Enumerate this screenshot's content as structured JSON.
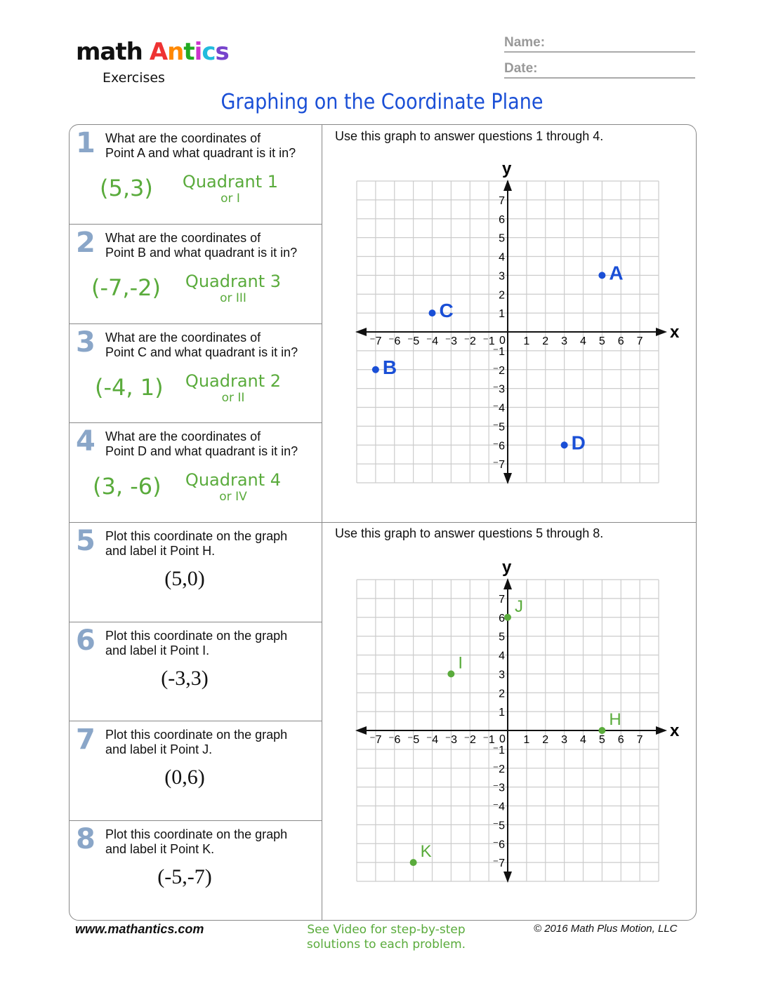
{
  "header": {
    "logo_math": "math",
    "logo_antics": "Antics",
    "logo_exercises": "Exercises",
    "name_label": "Name:",
    "date_label": "Date:",
    "title": "Graphing on the Coordinate Plane"
  },
  "questions": [
    {
      "num": "1",
      "text": [
        "What are the coordinates of",
        "Point A and what quadrant is it in?"
      ],
      "answer": "(5,3)",
      "quadrant": "Quadrant 1",
      "roman": "or I"
    },
    {
      "num": "2",
      "text": [
        "What are the coordinates of",
        "Point B and what quadrant is it in?"
      ],
      "answer": "(-7,-2)",
      "quadrant": "Quadrant 3",
      "roman": "or III"
    },
    {
      "num": "3",
      "text": [
        "What are the coordinates of",
        "Point C and what quadrant is it in?"
      ],
      "answer": "(-4, 1)",
      "quadrant": "Quadrant 2",
      "roman": "or II"
    },
    {
      "num": "4",
      "text": [
        "What are the coordinates of",
        "Point D and what quadrant is it in?"
      ],
      "answer": "(3, -6)",
      "quadrant": "Quadrant 4",
      "roman": "or IV"
    },
    {
      "num": "5",
      "text": [
        "Plot this coordinate on the graph",
        "and label it Point H."
      ],
      "coord": "(5,0)"
    },
    {
      "num": "6",
      "text": [
        "Plot this coordinate on the graph",
        "and label it Point I."
      ],
      "coord": "(-3,3)"
    },
    {
      "num": "7",
      "text": [
        "Plot this coordinate on the graph",
        "and label it Point J."
      ],
      "coord": "(0,6)"
    },
    {
      "num": "8",
      "text": [
        "Plot this coordinate on the graph",
        "and label it Point K."
      ],
      "coord": "(-5,-7)"
    }
  ],
  "graph_captions": [
    "Use this graph to answer questions 1 through 4.",
    "Use this graph to answer questions 5 through 8."
  ],
  "chart_data": [
    {
      "type": "scatter",
      "xlabel": "x",
      "ylabel": "y",
      "xlim": [
        -8,
        8
      ],
      "ylim": [
        -8,
        8
      ],
      "ticks": [
        -7,
        -6,
        -5,
        -4,
        -3,
        -2,
        -1,
        0,
        1,
        2,
        3,
        4,
        5,
        6,
        7
      ],
      "grid": true,
      "color": "#1a4fd6",
      "points": [
        {
          "label": "A",
          "x": 5,
          "y": 3
        },
        {
          "label": "B",
          "x": -7,
          "y": -2
        },
        {
          "label": "C",
          "x": -4,
          "y": 1
        },
        {
          "label": "D",
          "x": 3,
          "y": -6
        }
      ]
    },
    {
      "type": "scatter",
      "xlabel": "x",
      "ylabel": "y",
      "xlim": [
        -8,
        8
      ],
      "ylim": [
        -8,
        8
      ],
      "ticks": [
        -7,
        -6,
        -5,
        -4,
        -3,
        -2,
        -1,
        0,
        1,
        2,
        3,
        4,
        5,
        6,
        7
      ],
      "grid": true,
      "color": "#5aab3c",
      "points": [
        {
          "label": "H",
          "x": 5,
          "y": 0
        },
        {
          "label": "I",
          "x": -3,
          "y": 3
        },
        {
          "label": "J",
          "x": 0,
          "y": 6
        },
        {
          "label": "K",
          "x": -5,
          "y": -7
        }
      ]
    }
  ],
  "footer": {
    "website": "www.mathantics.com",
    "video_note": [
      "See Video for step-by-step",
      "solutions to each problem."
    ],
    "copyright": "© 2016 Math Plus Motion, LLC"
  }
}
